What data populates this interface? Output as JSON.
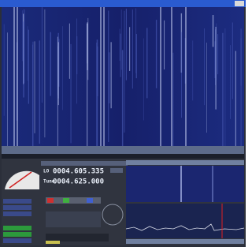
{
  "display": {
    "lo_label": "LO",
    "lo_freq": "0004.605.335",
    "tune_label": "Tune",
    "tune_freq": "0004.625.000"
  }
}
